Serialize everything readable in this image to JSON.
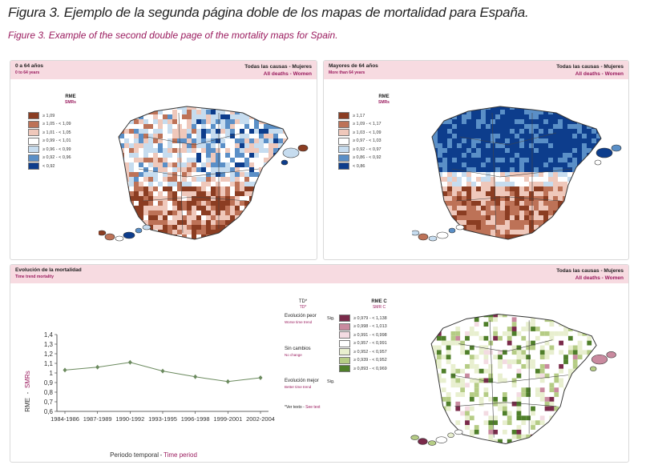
{
  "title": {
    "es": "Figura 3. Ejemplo de la segunda página doble de los mapas de mortalidad para España.",
    "en": "Figure 3. Example of the second double page of the mortality maps for Spain."
  },
  "panel1": {
    "left_es": "0 a 64 años",
    "left_en": "0 to 64 years",
    "right_es": "Todas las causas - Mujeres",
    "right_en": "All deaths - Women",
    "legend_title_es": "RME",
    "legend_title_en": "SMRs",
    "legend": [
      {
        "label": "≥ 1,09",
        "color": "#8b3d22"
      },
      {
        "label": "≥ 1,05 - < 1,09",
        "color": "#bd7257"
      },
      {
        "label": "≥ 1,01 - < 1,05",
        "color": "#efc8bb"
      },
      {
        "label": "≥ 0,99 - < 1,01",
        "color": "#ffffff"
      },
      {
        "label": "≥ 0,96 - < 0,99",
        "color": "#c6dcef"
      },
      {
        "label": "≥ 0,92 - < 0,96",
        "color": "#5a8fc7"
      },
      {
        "label": "< 0,92",
        "color": "#0d3d8c"
      }
    ]
  },
  "panel2": {
    "left_es": "Mayores de 64 años",
    "left_en": "More than 64 years",
    "right_es": "Todas las causas - Mujeres",
    "right_en": "All deaths - Women",
    "legend_title_es": "RME",
    "legend_title_en": "SMRs",
    "legend": [
      {
        "label": "≥ 1,17",
        "color": "#8b3d22"
      },
      {
        "label": "≥ 1,09 - < 1,17",
        "color": "#bd7257"
      },
      {
        "label": "≥ 1,03 - < 1,09",
        "color": "#efc8bb"
      },
      {
        "label": "≥ 0,97 - < 1,03",
        "color": "#ffffff"
      },
      {
        "label": "≥ 0,92 - < 0,97",
        "color": "#c6dcef"
      },
      {
        "label": "≥ 0,86 - < 0,92",
        "color": "#5a8fc7"
      },
      {
        "label": "< 0,86",
        "color": "#0d3d8c"
      }
    ]
  },
  "panel3": {
    "left_es": "Evolución de la mortalidad",
    "left_en": "Time trend mortality",
    "right_es": "Todas las causas - Mujeres",
    "right_en": "All deaths - Women",
    "td_es": "TD*",
    "td_en": "TD*",
    "rme_c_es": "RME C",
    "rme_c_en": "SMR C",
    "worse_es": "Evolución peor",
    "worse_en": "Worse time trend",
    "nochange_es": "Sin cambios",
    "nochange_en": "No change",
    "better_es": "Evolución mejor",
    "better_en": "Better time trend",
    "sig": "Sig.",
    "note_es": "*Ver texto - ",
    "note_en": "See text",
    "legend": [
      {
        "label": "≥ 0,979 - < 1,138",
        "color": "#7a2a4a"
      },
      {
        "label": "≥ 0,998 - < 1,013",
        "color": "#c98a9f"
      },
      {
        "label": "≥ 0,991 - < 0,998",
        "color": "#f3dbe2"
      },
      {
        "label": "≥ 0,957 - < 0,991",
        "color": "#ffffff"
      },
      {
        "label": "≥ 0,952 - < 0,957",
        "color": "#e8efcf"
      },
      {
        "label": "≥ 0,939 - < 0,952",
        "color": "#b5cc85"
      },
      {
        "label": "≥ 0,893 - < 0,969",
        "color": "#4f7f2a"
      }
    ]
  },
  "chart_data": {
    "type": "line",
    "categories": [
      "1984-1986",
      "1987-1989",
      "1990-1992",
      "1993-1995",
      "1996-1998",
      "1999-2001",
      "2002-2004"
    ],
    "series": [
      {
        "values": [
          1.03,
          1.06,
          1.11,
          1.02,
          0.96,
          0.91,
          0.95
        ]
      }
    ],
    "xlabel_es": "Periodo temporal",
    "xlabel_en": "Time period",
    "ylabel_es": "RME",
    "ylabel_en": "SMRs",
    "yticks": [
      "1,4",
      "1,3",
      "1,2",
      "1,1",
      "1",
      "0,9",
      "0,8",
      "0,7",
      "0,6"
    ],
    "ylim": [
      0.6,
      1.4
    ],
    "line_color": "#6b8a5e"
  }
}
